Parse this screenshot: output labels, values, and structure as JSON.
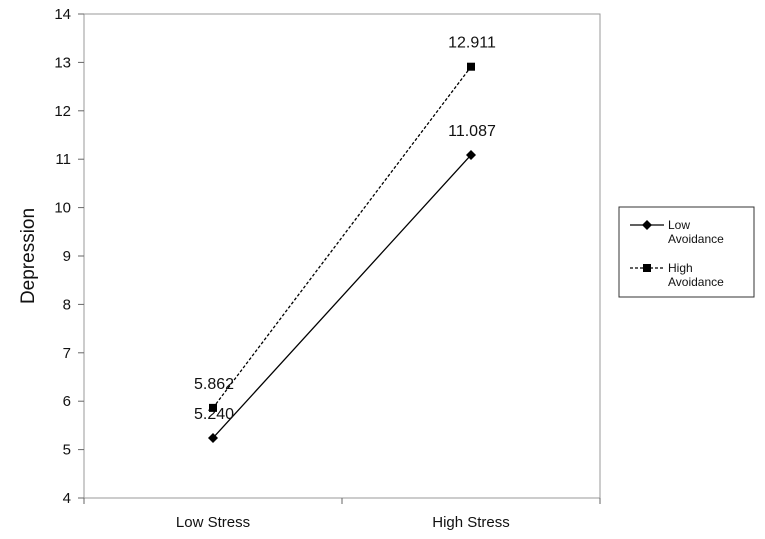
{
  "chart_data": {
    "type": "line",
    "title": "",
    "xlabel": "",
    "ylabel": "Depression",
    "categories": [
      "Low Stress",
      "High Stress"
    ],
    "ylim": [
      4,
      14
    ],
    "yticks": [
      4,
      5,
      6,
      7,
      8,
      9,
      10,
      11,
      12,
      13,
      14
    ],
    "grid": false,
    "legend_position": "right",
    "series": [
      {
        "legend_line1": "Low",
        "legend_line2": "Avoidance",
        "values": [
          5.24,
          11.087
        ],
        "labels": [
          "5.240",
          "11.087"
        ],
        "marker": "diamond",
        "line_style": "solid",
        "color": "#000000"
      },
      {
        "legend_line1": "High",
        "legend_line2": "Avoidance",
        "values": [
          5.862,
          12.911
        ],
        "labels": [
          "5.862",
          "12.911"
        ],
        "marker": "square",
        "line_style": "dashed",
        "color": "#000000"
      }
    ]
  }
}
